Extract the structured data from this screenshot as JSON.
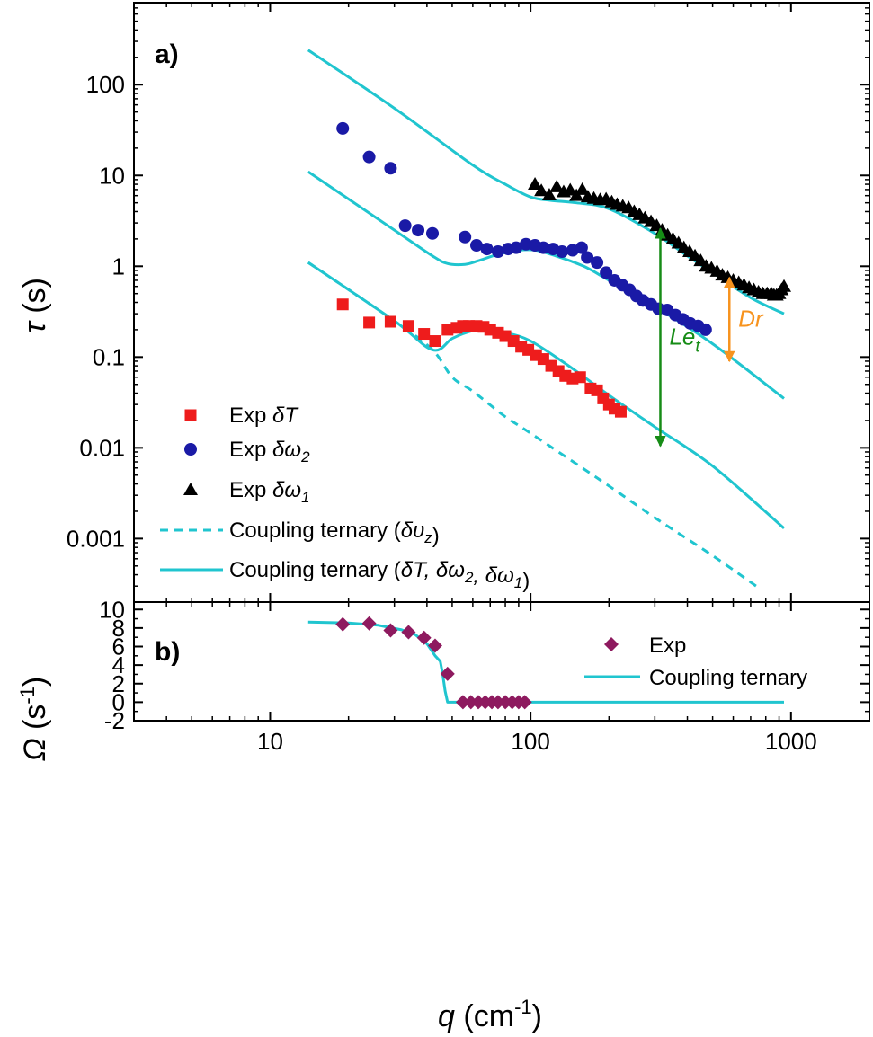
{
  "colors": {
    "red": "#ee1c1c",
    "blue": "#1a1aa6",
    "black": "#000000",
    "cyan": "#20c5cf",
    "purple": "#8e1a5f",
    "green": "#168c16",
    "orange": "#f7931e"
  },
  "chart_data": [
    {
      "panel_label": "a)",
      "type": "scatter",
      "xscale": "log",
      "yscale": "log",
      "xlim": [
        3,
        2000
      ],
      "ylim": [
        0.0002,
        800
      ],
      "ylabel": {
        "symbol": "τ",
        "unit": " (s)"
      },
      "y_ticks": [
        {
          "value": 100,
          "label": "100"
        },
        {
          "value": 10,
          "label": "10"
        },
        {
          "value": 1,
          "label": "1"
        },
        {
          "value": 0.1,
          "label": "0.1"
        },
        {
          "value": 0.01,
          "label": "0.01"
        },
        {
          "value": 0.001,
          "label": "0.001"
        }
      ],
      "legend_position": "bottom-left",
      "series": [
        {
          "name": {
            "main": "Exp ",
            "sym": "δT",
            "sub": ""
          },
          "kind": "scatter",
          "marker": "square",
          "color": "red",
          "points": [
            [
              19,
              0.38
            ],
            [
              24,
              0.24
            ],
            [
              29,
              0.245
            ],
            [
              34,
              0.22
            ],
            [
              39,
              0.18
            ],
            [
              43,
              0.15
            ],
            [
              48,
              0.2
            ],
            [
              52,
              0.21
            ],
            [
              55,
              0.22
            ],
            [
              58,
              0.22
            ],
            [
              62,
              0.22
            ],
            [
              66,
              0.215
            ],
            [
              70,
              0.2
            ],
            [
              75,
              0.185
            ],
            [
              80,
              0.17
            ],
            [
              86,
              0.15
            ],
            [
              92,
              0.13
            ],
            [
              98,
              0.12
            ],
            [
              105,
              0.105
            ],
            [
              112,
              0.095
            ],
            [
              120,
              0.08
            ],
            [
              128,
              0.07
            ],
            [
              136,
              0.062
            ],
            [
              145,
              0.058
            ],
            [
              155,
              0.06
            ],
            [
              170,
              0.045
            ],
            [
              180,
              0.043
            ],
            [
              190,
              0.035
            ],
            [
              200,
              0.03
            ],
            [
              210,
              0.027
            ],
            [
              222,
              0.025
            ]
          ]
        },
        {
          "name": {
            "main": "Exp ",
            "sym": "δω",
            "sub": "2"
          },
          "kind": "scatter",
          "marker": "circle",
          "color": "blue",
          "points": [
            [
              19,
              33
            ],
            [
              24,
              16
            ],
            [
              29,
              12
            ],
            [
              33,
              2.8
            ],
            [
              37,
              2.5
            ],
            [
              42,
              2.3
            ],
            [
              56,
              2.1
            ],
            [
              62,
              1.7
            ],
            [
              68,
              1.55
            ],
            [
              75,
              1.45
            ],
            [
              82,
              1.55
            ],
            [
              88,
              1.6
            ],
            [
              96,
              1.75
            ],
            [
              104,
              1.7
            ],
            [
              112,
              1.6
            ],
            [
              122,
              1.55
            ],
            [
              132,
              1.45
            ],
            [
              145,
              1.5
            ],
            [
              157,
              1.6
            ],
            [
              165,
              1.25
            ],
            [
              180,
              1.1
            ],
            [
              195,
              0.85
            ],
            [
              210,
              0.7
            ],
            [
              225,
              0.62
            ],
            [
              240,
              0.55
            ],
            [
              255,
              0.47
            ],
            [
              270,
              0.42
            ],
            [
              290,
              0.38
            ],
            [
              310,
              0.34
            ],
            [
              335,
              0.33
            ],
            [
              360,
              0.29
            ],
            [
              385,
              0.26
            ],
            [
              410,
              0.235
            ],
            [
              440,
              0.22
            ],
            [
              470,
              0.2
            ]
          ]
        },
        {
          "name": {
            "main": "Exp ",
            "sym": "δω",
            "sub": "1"
          },
          "kind": "scatter",
          "marker": "triangle",
          "color": "black",
          "points": [
            [
              104,
              8
            ],
            [
              110,
              6.8
            ],
            [
              118,
              6.1
            ],
            [
              126,
              7.5
            ],
            [
              134,
              6.6
            ],
            [
              142,
              6.9
            ],
            [
              150,
              6.0
            ],
            [
              158,
              7.0
            ],
            [
              166,
              5.8
            ],
            [
              175,
              5.6
            ],
            [
              185,
              5.4
            ],
            [
              195,
              5.5
            ],
            [
              205,
              5.1
            ],
            [
              215,
              4.8
            ],
            [
              226,
              4.6
            ],
            [
              238,
              4.4
            ],
            [
              250,
              4.0
            ],
            [
              262,
              3.7
            ],
            [
              275,
              3.4
            ],
            [
              290,
              3.1
            ],
            [
              305,
              2.8
            ],
            [
              320,
              2.5
            ],
            [
              336,
              2.2
            ],
            [
              352,
              2.0
            ],
            [
              370,
              1.8
            ],
            [
              388,
              1.6
            ],
            [
              408,
              1.45
            ],
            [
              428,
              1.3
            ],
            [
              450,
              1.15
            ],
            [
              472,
              1.0
            ],
            [
              495,
              0.95
            ],
            [
              520,
              0.88
            ],
            [
              545,
              0.8
            ],
            [
              572,
              0.75
            ],
            [
              600,
              0.7
            ],
            [
              630,
              0.66
            ],
            [
              660,
              0.62
            ],
            [
              690,
              0.58
            ],
            [
              720,
              0.55
            ],
            [
              750,
              0.52
            ],
            [
              780,
              0.5
            ],
            [
              810,
              0.5
            ],
            [
              840,
              0.5
            ],
            [
              860,
              0.48
            ],
            [
              880,
              0.48
            ],
            [
              900,
              0.5
            ],
            [
              920,
              0.55
            ],
            [
              940,
              0.6
            ]
          ]
        },
        {
          "name": {
            "main": "Coupling ternary (",
            "sym": "δυ",
            "sub": "z",
            "tail": ")"
          },
          "kind": "dashed-line",
          "color": "cyan",
          "points": [
            [
              14,
              1.1
            ],
            [
              30,
              0.25
            ],
            [
              42,
              0.12
            ],
            [
              50,
              0.06
            ],
            [
              60,
              0.042
            ],
            [
              80,
              0.022
            ],
            [
              100,
              0.0145
            ],
            [
              200,
              0.0038
            ],
            [
              300,
              0.0017
            ],
            [
              500,
              0.00065
            ],
            [
              760,
              0.00028
            ]
          ]
        },
        {
          "name": {
            "main": "Coupling ternary (",
            "sym": "δT",
            "sym2": ", δω",
            "sub2": "2",
            "sym3": ", δω",
            "sub3": "1",
            "tail": ")"
          },
          "kind": "line",
          "color": "cyan",
          "curves": [
            [
              [
                14,
                240
              ],
              [
                30,
                55
              ],
              [
                60,
                13
              ],
              [
                80,
                8
              ],
              [
                100,
                5.8
              ],
              [
                120,
                5.3
              ],
              [
                150,
                5.0
              ],
              [
                200,
                4.3
              ],
              [
                300,
                2.3
              ],
              [
                400,
                1.3
              ],
              [
                500,
                0.85
              ],
              [
                700,
                0.45
              ],
              [
                940,
                0.3
              ]
            ],
            [
              [
                14,
                11
              ],
              [
                30,
                2.5
              ],
              [
                42,
                1.3
              ],
              [
                48,
                1.07
              ],
              [
                56,
                1.05
              ],
              [
                63,
                1.15
              ],
              [
                75,
                1.35
              ],
              [
                90,
                1.5
              ],
              [
                105,
                1.5
              ],
              [
                125,
                1.3
              ],
              [
                160,
                1.0
              ],
              [
                200,
                0.7
              ],
              [
                300,
                0.36
              ],
              [
                500,
                0.14
              ],
              [
                940,
                0.035
              ]
            ],
            [
              [
                14,
                1.1
              ],
              [
                30,
                0.25
              ],
              [
                42,
                0.12
              ],
              [
                50,
                0.16
              ],
              [
                58,
                0.19
              ],
              [
                65,
                0.2
              ],
              [
                80,
                0.185
              ],
              [
                100,
                0.15
              ],
              [
                140,
                0.08
              ],
              [
                200,
                0.038
              ],
              [
                300,
                0.017
              ],
              [
                500,
                0.0063
              ],
              [
                940,
                0.0013
              ]
            ]
          ]
        }
      ],
      "annotations": [
        {
          "text": "Le",
          "sub": "t",
          "color": "green",
          "x": 315,
          "y_top": 2.6,
          "y_bottom": 0.0105
        },
        {
          "text": "Dr",
          "sub": "",
          "color": "orange",
          "x": 580,
          "y_top": 0.75,
          "y_bottom": 0.09
        }
      ]
    },
    {
      "panel_label": "b)",
      "type": "scatter",
      "xscale": "log",
      "yscale": "linear",
      "xlim": [
        3,
        2000
      ],
      "ylim": [
        -2,
        10.8
      ],
      "xlabel": {
        "symbol": "q",
        "unit": " (cm",
        "sup": "-1",
        "tail": ")"
      },
      "ylabel": {
        "symbol": "Ω",
        "unit": " (s",
        "sup": "-1",
        "tail": ")"
      },
      "x_ticks": [
        {
          "value": 10,
          "label": "10"
        },
        {
          "value": 100,
          "label": "100"
        },
        {
          "value": 1000,
          "label": "1000"
        }
      ],
      "y_ticks": [
        {
          "value": 10,
          "label": "10"
        },
        {
          "value": 8,
          "label": "8"
        },
        {
          "value": 6,
          "label": "6"
        },
        {
          "value": 4,
          "label": "4"
        },
        {
          "value": 2,
          "label": "2"
        },
        {
          "value": 0,
          "label": "0"
        },
        {
          "value": -2,
          "label": "-2"
        }
      ],
      "legend_position": "top-right",
      "series": [
        {
          "name": "Exp",
          "kind": "scatter",
          "marker": "diamond",
          "color": "purple",
          "points": [
            [
              19,
              8.4
            ],
            [
              24,
              8.5
            ],
            [
              29,
              7.75
            ],
            [
              34,
              7.55
            ],
            [
              39,
              6.95
            ],
            [
              43,
              6.1
            ],
            [
              48,
              3.05
            ],
            [
              55,
              0
            ],
            [
              59,
              0
            ],
            [
              63,
              0
            ],
            [
              67,
              0
            ],
            [
              71,
              0
            ],
            [
              75,
              0
            ],
            [
              80,
              0
            ],
            [
              85,
              0
            ],
            [
              90,
              0
            ],
            [
              95,
              0
            ]
          ]
        },
        {
          "name": "Coupling ternary",
          "kind": "line",
          "color": "cyan",
          "points": [
            [
              14,
              8.65
            ],
            [
              20,
              8.55
            ],
            [
              26,
              8.3
            ],
            [
              32,
              7.8
            ],
            [
              36,
              7.3
            ],
            [
              40,
              6.3
            ],
            [
              43,
              5.0
            ],
            [
              45,
              4.4
            ],
            [
              46,
              3.0
            ],
            [
              47,
              1.2
            ],
            [
              48,
              0
            ],
            [
              50,
              0
            ],
            [
              100,
              0
            ],
            [
              500,
              0
            ],
            [
              940,
              0
            ]
          ]
        }
      ]
    }
  ]
}
